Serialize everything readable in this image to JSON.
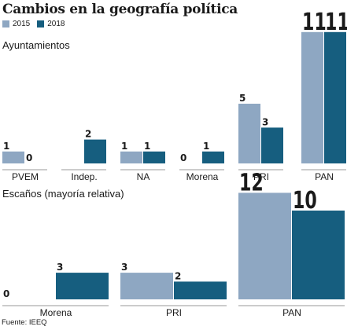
{
  "title": "Cambios en la geografía política",
  "legend": [
    {
      "label": "2015",
      "color": "#8ea7c2"
    },
    {
      "label": "2018",
      "color": "#165e7f"
    }
  ],
  "source": "Fuente: IEEQ",
  "chart_data": [
    {
      "type": "bar",
      "title": "Ayuntamientos",
      "categories": [
        "PVEM",
        "Indep.",
        "NA",
        "Morena",
        "PRI",
        "PAN"
      ],
      "series": [
        {
          "name": "2015",
          "values": [
            1,
            0,
            1,
            0,
            5,
            11
          ]
        },
        {
          "name": "2018",
          "values": [
            0,
            2,
            1,
            1,
            3,
            11
          ]
        }
      ],
      "data_labels": [
        [
          "1",
          "0"
        ],
        [
          "",
          "2"
        ],
        [
          "1",
          "1"
        ],
        [
          "0",
          "1"
        ],
        [
          "5",
          "3"
        ],
        [
          "11",
          "11"
        ]
      ]
    },
    {
      "type": "bar",
      "title": "Escaños (mayoría relativa)",
      "categories": [
        "Morena",
        "PRI",
        "PAN"
      ],
      "series": [
        {
          "name": "2015",
          "values": [
            0,
            3,
            12
          ]
        },
        {
          "name": "2018",
          "values": [
            3,
            2,
            10
          ]
        }
      ],
      "data_labels": [
        [
          "0",
          "3"
        ],
        [
          "3",
          "2"
        ],
        [
          "12",
          "10"
        ]
      ]
    }
  ]
}
